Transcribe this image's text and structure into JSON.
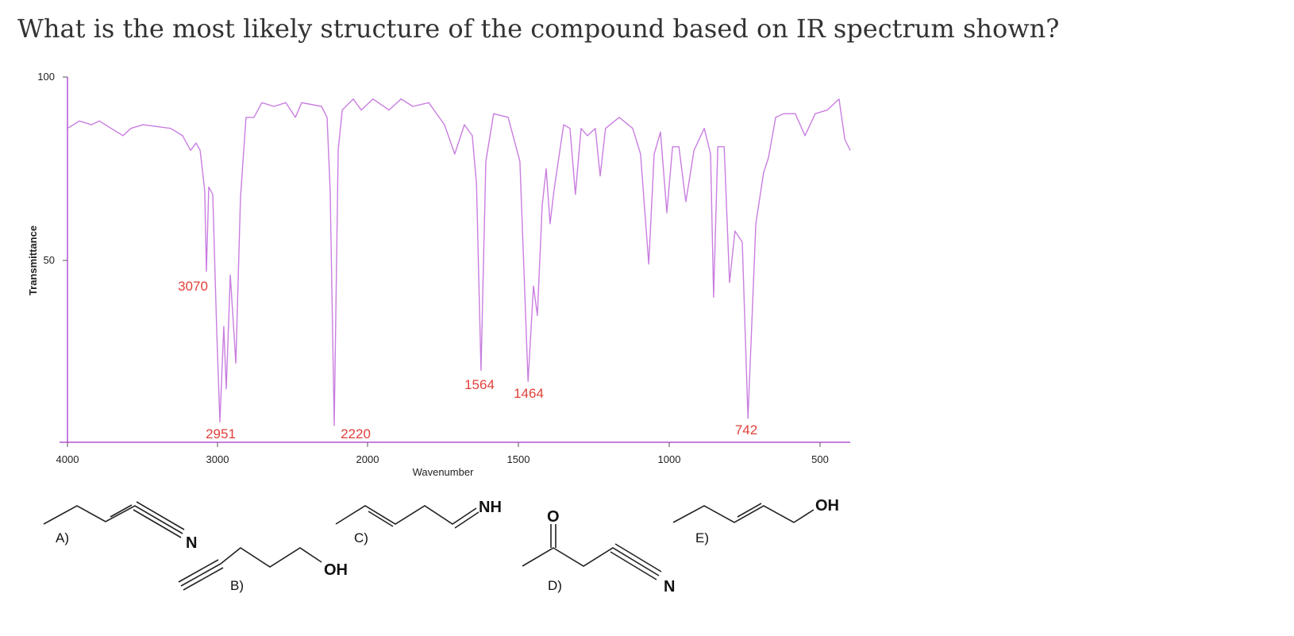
{
  "question": "What is the most likely structure of the compound based on IR spectrum shown?",
  "chart_data": {
    "type": "line",
    "xlabel": "Wavenumber",
    "ylabel": "Transmittance",
    "xlim": [
      4000,
      400
    ],
    "ylim": [
      0,
      100
    ],
    "xticks": [
      4000,
      3000,
      2000,
      1500,
      1000,
      500
    ],
    "yticks": [
      50,
      100
    ],
    "x_reversed": true,
    "color": "#c97ee0",
    "axis_color": "#b455d6",
    "annotations": [
      "3070",
      "2951",
      "2220",
      "1564",
      "1464",
      "742"
    ],
    "x": [
      4000,
      3921,
      3841,
      3788,
      3709,
      3630,
      3577,
      3497,
      3312,
      3233,
      3180,
      3143,
      3116,
      3085,
      3074,
      3058,
      3032,
      3005,
      2984,
      2958,
      2942,
      2915,
      2878,
      2847,
      2810,
      2757,
      2704,
      2624,
      2545,
      2481,
      2439,
      2307,
      2270,
      2249,
      2222,
      2196,
      2169,
      2095,
      2042,
      1982,
      1929,
      1889,
      1850,
      1797,
      1745,
      1711,
      1679,
      1653,
      1639,
      1624,
      1608,
      1582,
      1534,
      1495,
      1468,
      1450,
      1437,
      1421,
      1408,
      1395,
      1382,
      1368,
      1350,
      1329,
      1311,
      1292,
      1271,
      1245,
      1229,
      1211,
      1166,
      1121,
      1095,
      1068,
      1050,
      1029,
      1008,
      989,
      968,
      945,
      918,
      884,
      863,
      853,
      839,
      818,
      800,
      782,
      758,
      739,
      713,
      687,
      671,
      647,
      621,
      582,
      550,
      516,
      476,
      437,
      418,
      400
    ],
    "values": [
      86,
      88,
      87,
      88,
      86,
      84,
      86,
      87,
      86,
      84,
      80,
      82,
      80,
      69,
      47,
      70,
      68,
      30,
      6,
      32,
      15,
      46,
      22,
      67,
      89,
      89,
      93,
      92,
      93,
      89,
      93,
      92,
      89,
      69,
      5,
      80,
      91,
      94,
      91,
      94,
      91,
      94,
      92,
      93,
      87,
      79,
      87,
      84,
      71,
      20,
      77,
      90,
      89,
      77,
      17,
      43,
      35,
      65,
      75,
      60,
      69,
      77,
      87,
      86,
      68,
      86,
      84,
      86,
      73,
      86,
      89,
      86,
      79,
      49,
      79,
      85,
      63,
      81,
      81,
      66,
      80,
      86,
      79,
      40,
      81,
      81,
      44,
      58,
      55,
      7,
      60,
      74,
      78,
      89,
      90,
      90,
      84,
      90,
      91,
      94,
      83,
      80
    ]
  },
  "options": [
    {
      "label": "A)",
      "atoms": [
        "N"
      ]
    },
    {
      "label": "B)",
      "atoms": [
        "OH"
      ]
    },
    {
      "label": "C)",
      "atoms": [
        "NH"
      ]
    },
    {
      "label": "D)",
      "atoms": [
        "O",
        "N"
      ]
    },
    {
      "label": "E)",
      "atoms": [
        "OH"
      ]
    }
  ]
}
